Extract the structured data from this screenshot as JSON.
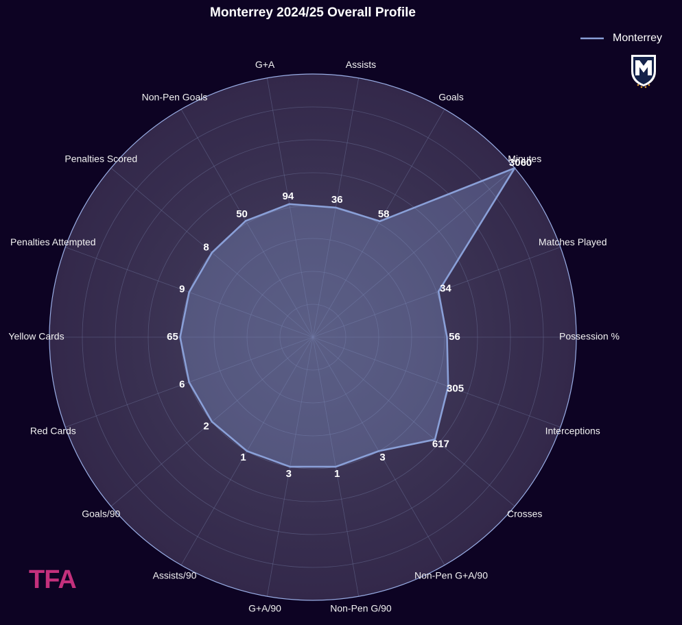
{
  "chart_data": {
    "type": "radar",
    "title": "Monterrey 2024/25 Overall Profile",
    "categories": [
      "Possession %",
      "Matches Played",
      "Minutes",
      "Goals",
      "Assists",
      "G+A",
      "Non-Pen Goals",
      "Penalties Scored",
      "Penalties Attempted",
      "Yellow Cards",
      "Red Cards",
      "Goals/90",
      "Assists/90",
      "G+A/90",
      "Non-Pen G/90",
      "Non-Pen G+A/90",
      "Crosses",
      "Interceptions"
    ],
    "rlims": [
      [
        0,
        110
      ],
      [
        0,
        67
      ],
      [
        0,
        3060
      ],
      [
        0,
        114
      ],
      [
        0,
        72
      ],
      [
        0,
        183
      ],
      [
        0,
        98
      ],
      [
        0,
        16
      ],
      [
        0,
        18
      ],
      [
        0,
        129
      ],
      [
        0,
        12
      ],
      [
        0,
        4
      ],
      [
        0,
        2
      ],
      [
        0,
        6
      ],
      [
        0,
        2
      ],
      [
        0,
        6
      ],
      [
        0,
        1020
      ],
      [
        0,
        558
      ]
    ],
    "series": [
      {
        "name": "Monterrey",
        "color": "#8aa0d8",
        "values": [
          56,
          34,
          3060,
          58,
          36,
          94,
          50,
          8,
          9,
          65,
          6,
          2,
          1,
          3,
          1,
          3,
          617,
          305
        ]
      }
    ],
    "grid": true,
    "legend": "upper right"
  },
  "brand": "TFA"
}
